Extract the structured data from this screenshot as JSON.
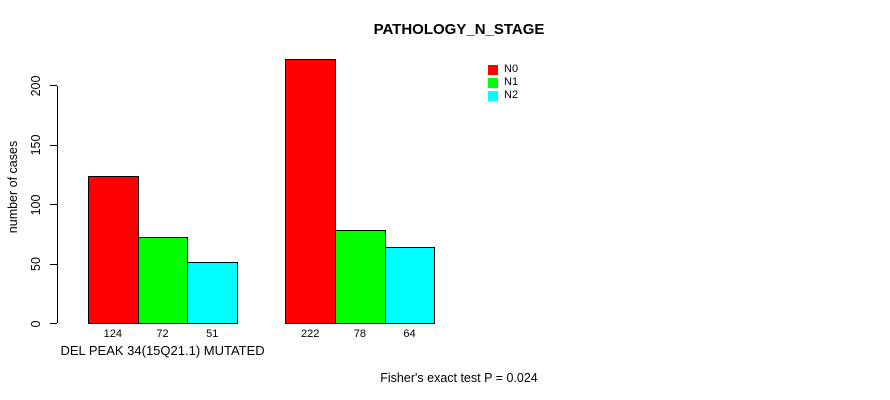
{
  "chart_data": {
    "type": "bar",
    "title": "PATHOLOGY_N_STAGE",
    "ylabel": "number of cases",
    "xlabel": "",
    "categories": [
      "DEL PEAK 34(15Q21.1) MUTATED",
      ""
    ],
    "series": [
      {
        "name": "N0",
        "color": "#ff0000",
        "values": [
          124,
          222
        ]
      },
      {
        "name": "N1",
        "color": "#00ff00",
        "values": [
          72,
          78
        ]
      },
      {
        "name": "N2",
        "color": "#00ffff",
        "values": [
          51,
          64
        ]
      }
    ],
    "bar_value_labels": [
      [
        "124",
        "72",
        "51"
      ],
      [
        "222",
        "78",
        "64"
      ]
    ],
    "yticks": [
      0,
      50,
      100,
      150,
      200
    ],
    "ylim": [
      0,
      235
    ],
    "grid": false,
    "legend_position": "top-right",
    "legend_entries": [
      "N0",
      "N1",
      "N2"
    ],
    "annotation": "Fisher's exact test P = 0.024"
  }
}
